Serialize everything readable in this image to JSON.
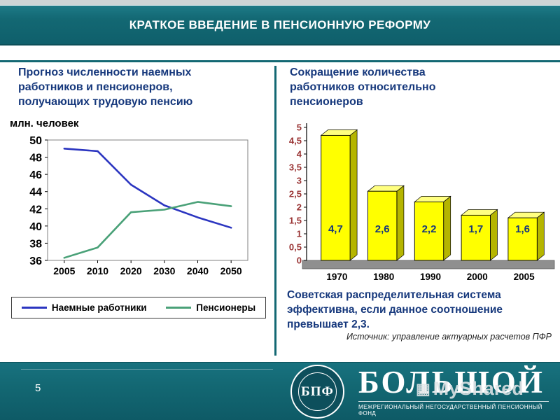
{
  "slide": {
    "title": "КРАТКОЕ ВВЕДЕНИЕ В ПЕНСИОННУЮ РЕФОРМУ",
    "page_number": "5"
  },
  "left_panel": {
    "heading": "Прогноз численности наемных работников и пенсионеров, получающих трудовую пенсию",
    "unit_label": "млн. человек",
    "legend": [
      {
        "label": "Наемные работники",
        "color": "#2b35c0"
      },
      {
        "label": "Пенсионеры",
        "color": "#4aa178"
      }
    ]
  },
  "right_panel": {
    "heading": "Сокращение количества работников относительно пенсионеров",
    "note": "Советская распределительная система эффективна, если данное соотношение превышает 2,3.",
    "source": "Источник: управление актуарных расчетов ПФР"
  },
  "footer": {
    "logo_monogram": "БПФ",
    "brand": "БОЛЬШОЙ",
    "brand_subtitle": "МЕЖРЕГИОНАЛЬНЫЙ НЕГОСУДАРСТВЕННЫЙ ПЕНСИОННЫЙ ФОНД",
    "watermark": "MyShared"
  },
  "colors": {
    "band_teal": "#136873",
    "heading_navy": "#16387C",
    "bar_yellow": "#FFFF00",
    "line_blue": "#2b35c0",
    "line_green": "#4aa178",
    "bar_ytick_red": "#993333"
  },
  "chart_data": [
    {
      "type": "line",
      "title": "Прогноз численности наемных работников и пенсионеров, получающих трудовую пенсию",
      "ylabel": "млн. человек",
      "categories": [
        "2005",
        "2010",
        "2020",
        "2030",
        "2040",
        "2050"
      ],
      "series": [
        {
          "name": "Наемные работники",
          "color": "#2b35c0",
          "values": [
            49.0,
            48.7,
            44.8,
            42.4,
            41.0,
            39.8
          ]
        },
        {
          "name": "Пенсионеры",
          "color": "#4aa178",
          "values": [
            36.3,
            37.5,
            41.6,
            41.9,
            42.8,
            42.3
          ]
        }
      ],
      "ylim": [
        36,
        50
      ],
      "yticks": [
        36,
        38,
        40,
        42,
        44,
        46,
        48,
        50
      ],
      "grid": false,
      "legend_position": "bottom"
    },
    {
      "type": "bar",
      "title": "Сокращение количества работников относительно пенсионеров",
      "categories": [
        "1970",
        "1980",
        "1990",
        "2000",
        "2005"
      ],
      "values": [
        4.7,
        2.6,
        2.2,
        1.7,
        1.6
      ],
      "value_labels": [
        "4,7",
        "2,6",
        "2,2",
        "1,7",
        "1,6"
      ],
      "ylim": [
        0,
        5
      ],
      "ytick_values": [
        0,
        0.5,
        1,
        1.5,
        2,
        2.5,
        3,
        3.5,
        4,
        4.5,
        5
      ],
      "ytick_labels": [
        "0",
        "0,5",
        "1",
        "1,5",
        "2",
        "2,5",
        "3",
        "3,5",
        "4",
        "4,5",
        "5"
      ],
      "bar_color": "#FFFF00",
      "style": "3d",
      "grid": false,
      "legend_position": "none"
    }
  ]
}
